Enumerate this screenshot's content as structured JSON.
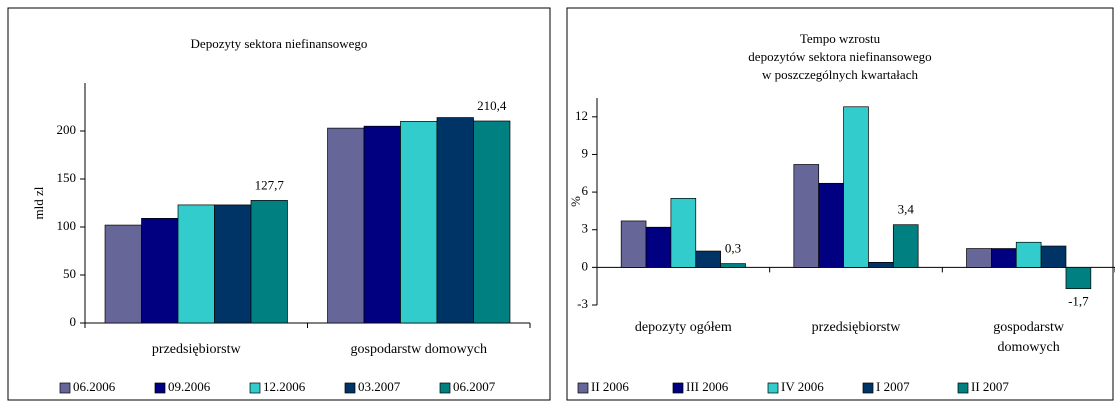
{
  "chart_data": [
    {
      "type": "bar",
      "title": [
        "Depozyty sektora niefinansowego"
      ],
      "y_label": "mld zl",
      "categories": [
        "przedsiębiorstw",
        "gospodarstw domowych"
      ],
      "series": [
        {
          "name": "06.2006",
          "color": "#666699",
          "values": [
            102,
            203
          ]
        },
        {
          "name": "09.2006",
          "color": "#000080",
          "values": [
            109,
            205
          ]
        },
        {
          "name": "12.2006",
          "color": "#33cccc",
          "values": [
            123,
            210
          ]
        },
        {
          "name": "03.2007",
          "color": "#003366",
          "values": [
            123,
            214
          ]
        },
        {
          "name": "06.2007",
          "color": "#008080",
          "values": [
            127.7,
            210.4
          ],
          "value_labels": [
            "127,7",
            "210,4"
          ]
        }
      ],
      "ylim": [
        0,
        250
      ],
      "yticks": [
        0,
        50,
        100,
        150,
        200
      ],
      "grid": false,
      "legend": "bottom"
    },
    {
      "type": "bar",
      "title": [
        "Tempo wzrostu",
        "depozytów sektora niefinansowego",
        "w poszczególnych kwartałach"
      ],
      "y_label": "%",
      "categories": [
        "depozyty ogółem",
        "przedsiębiorstw",
        "gospodarstw domowych"
      ],
      "series": [
        {
          "name": "II 2006",
          "color": "#666699",
          "values": [
            3.7,
            8.2,
            1.5
          ]
        },
        {
          "name": "III 2006",
          "color": "#000080",
          "values": [
            3.2,
            6.7,
            1.5
          ]
        },
        {
          "name": "IV 2006",
          "color": "#33cccc",
          "values": [
            5.5,
            12.8,
            2.0
          ]
        },
        {
          "name": "I 2007",
          "color": "#003366",
          "values": [
            1.3,
            0.4,
            1.7
          ]
        },
        {
          "name": "II 2007",
          "color": "#008080",
          "values": [
            0.3,
            3.4,
            -1.7
          ],
          "value_labels": [
            "0,3",
            "3,4",
            "-1,7"
          ]
        }
      ],
      "ylim": [
        -3,
        13.5
      ],
      "yticks": [
        -3,
        0,
        3,
        6,
        9,
        12
      ],
      "grid": false,
      "legend": "bottom"
    }
  ]
}
